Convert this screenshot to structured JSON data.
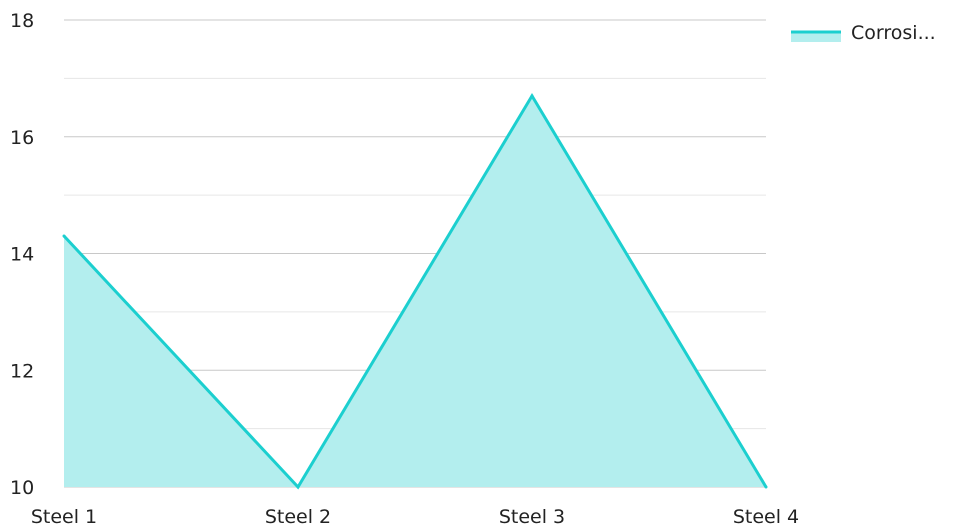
{
  "chart_data": {
    "type": "area",
    "title": "",
    "xlabel": "",
    "ylabel": "",
    "categories": [
      "Steel 1",
      "Steel 2",
      "Steel 3",
      "Steel 4"
    ],
    "series": [
      {
        "name": "Corrosi...",
        "values": [
          14.3,
          10.0,
          16.7,
          10.0
        ]
      }
    ],
    "ylim": [
      10,
      18
    ],
    "yticks": [
      10,
      12,
      14,
      16,
      18
    ],
    "grid": true,
    "legend": "top-right",
    "colors": {
      "line": "#1ccfcf",
      "fill": "#b3eeee",
      "grid_major": "#c8c8c8",
      "grid_minor": "#e6e6e6"
    }
  }
}
